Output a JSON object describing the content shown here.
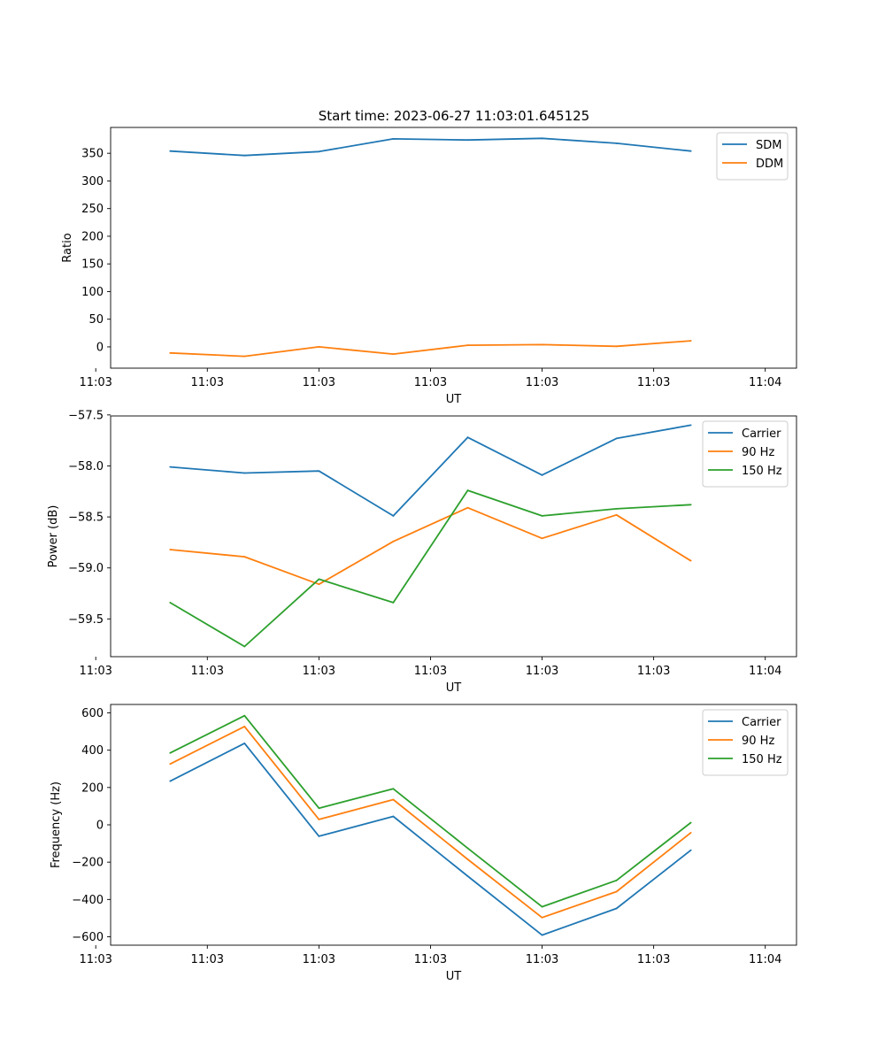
{
  "figure": {
    "title": "Start time: 2023-06-27 11:03:01.645125"
  },
  "chart_data": [
    {
      "type": "line",
      "xlabel": "UT",
      "ylabel": "Ratio",
      "x": [
        1,
        2,
        3,
        4,
        5,
        6,
        7,
        8
      ],
      "xlim": [
        0.2,
        9.42
      ],
      "x_ticks": [
        {
          "value": 0,
          "label": "11:03"
        },
        {
          "value": 1.5,
          "label": "11:03"
        },
        {
          "value": 3,
          "label": "11:03"
        },
        {
          "value": 4.5,
          "label": "11:03"
        },
        {
          "value": 6,
          "label": "11:03"
        },
        {
          "value": 7.5,
          "label": "11:03"
        },
        {
          "value": 9,
          "label": "11:04"
        }
      ],
      "ylim": [
        -38.5,
        396.7
      ],
      "y_ticks": [
        {
          "value": 0,
          "label": "0"
        },
        {
          "value": 50,
          "label": "50"
        },
        {
          "value": 100,
          "label": "100"
        },
        {
          "value": 150,
          "label": "150"
        },
        {
          "value": 200,
          "label": "200"
        },
        {
          "value": 250,
          "label": "250"
        },
        {
          "value": 300,
          "label": "300"
        },
        {
          "value": 350,
          "label": "350"
        }
      ],
      "legend_position": "top-right",
      "grid": false,
      "series": [
        {
          "name": "SDM",
          "color": "#1f77b4",
          "values": [
            354,
            346,
            353,
            376,
            374,
            377,
            368,
            354
          ]
        },
        {
          "name": "DDM",
          "color": "#ff7f0e",
          "values": [
            -11,
            -17,
            0,
            -13,
            3,
            4,
            1,
            11
          ]
        }
      ]
    },
    {
      "type": "line",
      "xlabel": "UT",
      "ylabel": "Power (dB)",
      "x": [
        1,
        2,
        3,
        4,
        5,
        6,
        7,
        8
      ],
      "xlim": [
        0.2,
        9.42
      ],
      "x_ticks": [
        {
          "value": 0,
          "label": "11:03"
        },
        {
          "value": 1.5,
          "label": "11:03"
        },
        {
          "value": 3,
          "label": "11:03"
        },
        {
          "value": 4.5,
          "label": "11:03"
        },
        {
          "value": 6,
          "label": "11:03"
        },
        {
          "value": 7.5,
          "label": "11:03"
        },
        {
          "value": 9,
          "label": "11:04"
        }
      ],
      "ylim": [
        -59.87,
        -57.51
      ],
      "y_ticks": [
        {
          "value": -59.5,
          "label": "−59.5"
        },
        {
          "value": -59.0,
          "label": "−59.0"
        },
        {
          "value": -58.5,
          "label": "−58.5"
        },
        {
          "value": -58.0,
          "label": "−58.0"
        },
        {
          "value": -57.5,
          "label": "−57.5"
        }
      ],
      "legend_position": "top-right",
      "grid": false,
      "series": [
        {
          "name": "Carrier",
          "color": "#1f77b4",
          "values": [
            -58.01,
            -58.07,
            -58.05,
            -58.49,
            -57.72,
            -58.09,
            -57.73,
            -57.6
          ]
        },
        {
          "name": "90 Hz",
          "color": "#ff7f0e",
          "values": [
            -58.82,
            -58.89,
            -59.16,
            -58.74,
            -58.41,
            -58.71,
            -58.48,
            -58.93
          ]
        },
        {
          "name": "150 Hz",
          "color": "#2ca02c",
          "values": [
            -59.34,
            -59.77,
            -59.11,
            -59.34,
            -58.24,
            -58.49,
            -58.42,
            -58.38
          ]
        }
      ]
    },
    {
      "type": "line",
      "xlabel": "UT",
      "ylabel": "Frequency (Hz)",
      "x": [
        1,
        2,
        3,
        4,
        5,
        6,
        7,
        8
      ],
      "xlim": [
        0.2,
        9.42
      ],
      "x_ticks": [
        {
          "value": 0,
          "label": "11:03"
        },
        {
          "value": 1.5,
          "label": "11:03"
        },
        {
          "value": 3,
          "label": "11:03"
        },
        {
          "value": 4.5,
          "label": "11:03"
        },
        {
          "value": 6,
          "label": "11:03"
        },
        {
          "value": 7.5,
          "label": "11:03"
        },
        {
          "value": 9,
          "label": "11:04"
        }
      ],
      "ylim": [
        -645,
        645
      ],
      "y_ticks": [
        {
          "value": -600,
          "label": "−600"
        },
        {
          "value": -400,
          "label": "−400"
        },
        {
          "value": -200,
          "label": "−200"
        },
        {
          "value": 0,
          "label": "0"
        },
        {
          "value": 200,
          "label": "200"
        },
        {
          "value": 400,
          "label": "400"
        },
        {
          "value": 600,
          "label": "600"
        }
      ],
      "legend_position": "top-right",
      "grid": false,
      "series": [
        {
          "name": "Carrier",
          "color": "#1f77b4",
          "values": [
            234,
            437,
            -61,
            45,
            -275,
            -591,
            -448,
            -136
          ]
        },
        {
          "name": "90 Hz",
          "color": "#ff7f0e",
          "values": [
            326,
            527,
            29,
            135,
            -185,
            -497,
            -358,
            -42
          ]
        },
        {
          "name": "150 Hz",
          "color": "#2ca02c",
          "values": [
            385,
            585,
            89,
            193,
            -125,
            -439,
            -298,
            12
          ]
        }
      ]
    }
  ]
}
